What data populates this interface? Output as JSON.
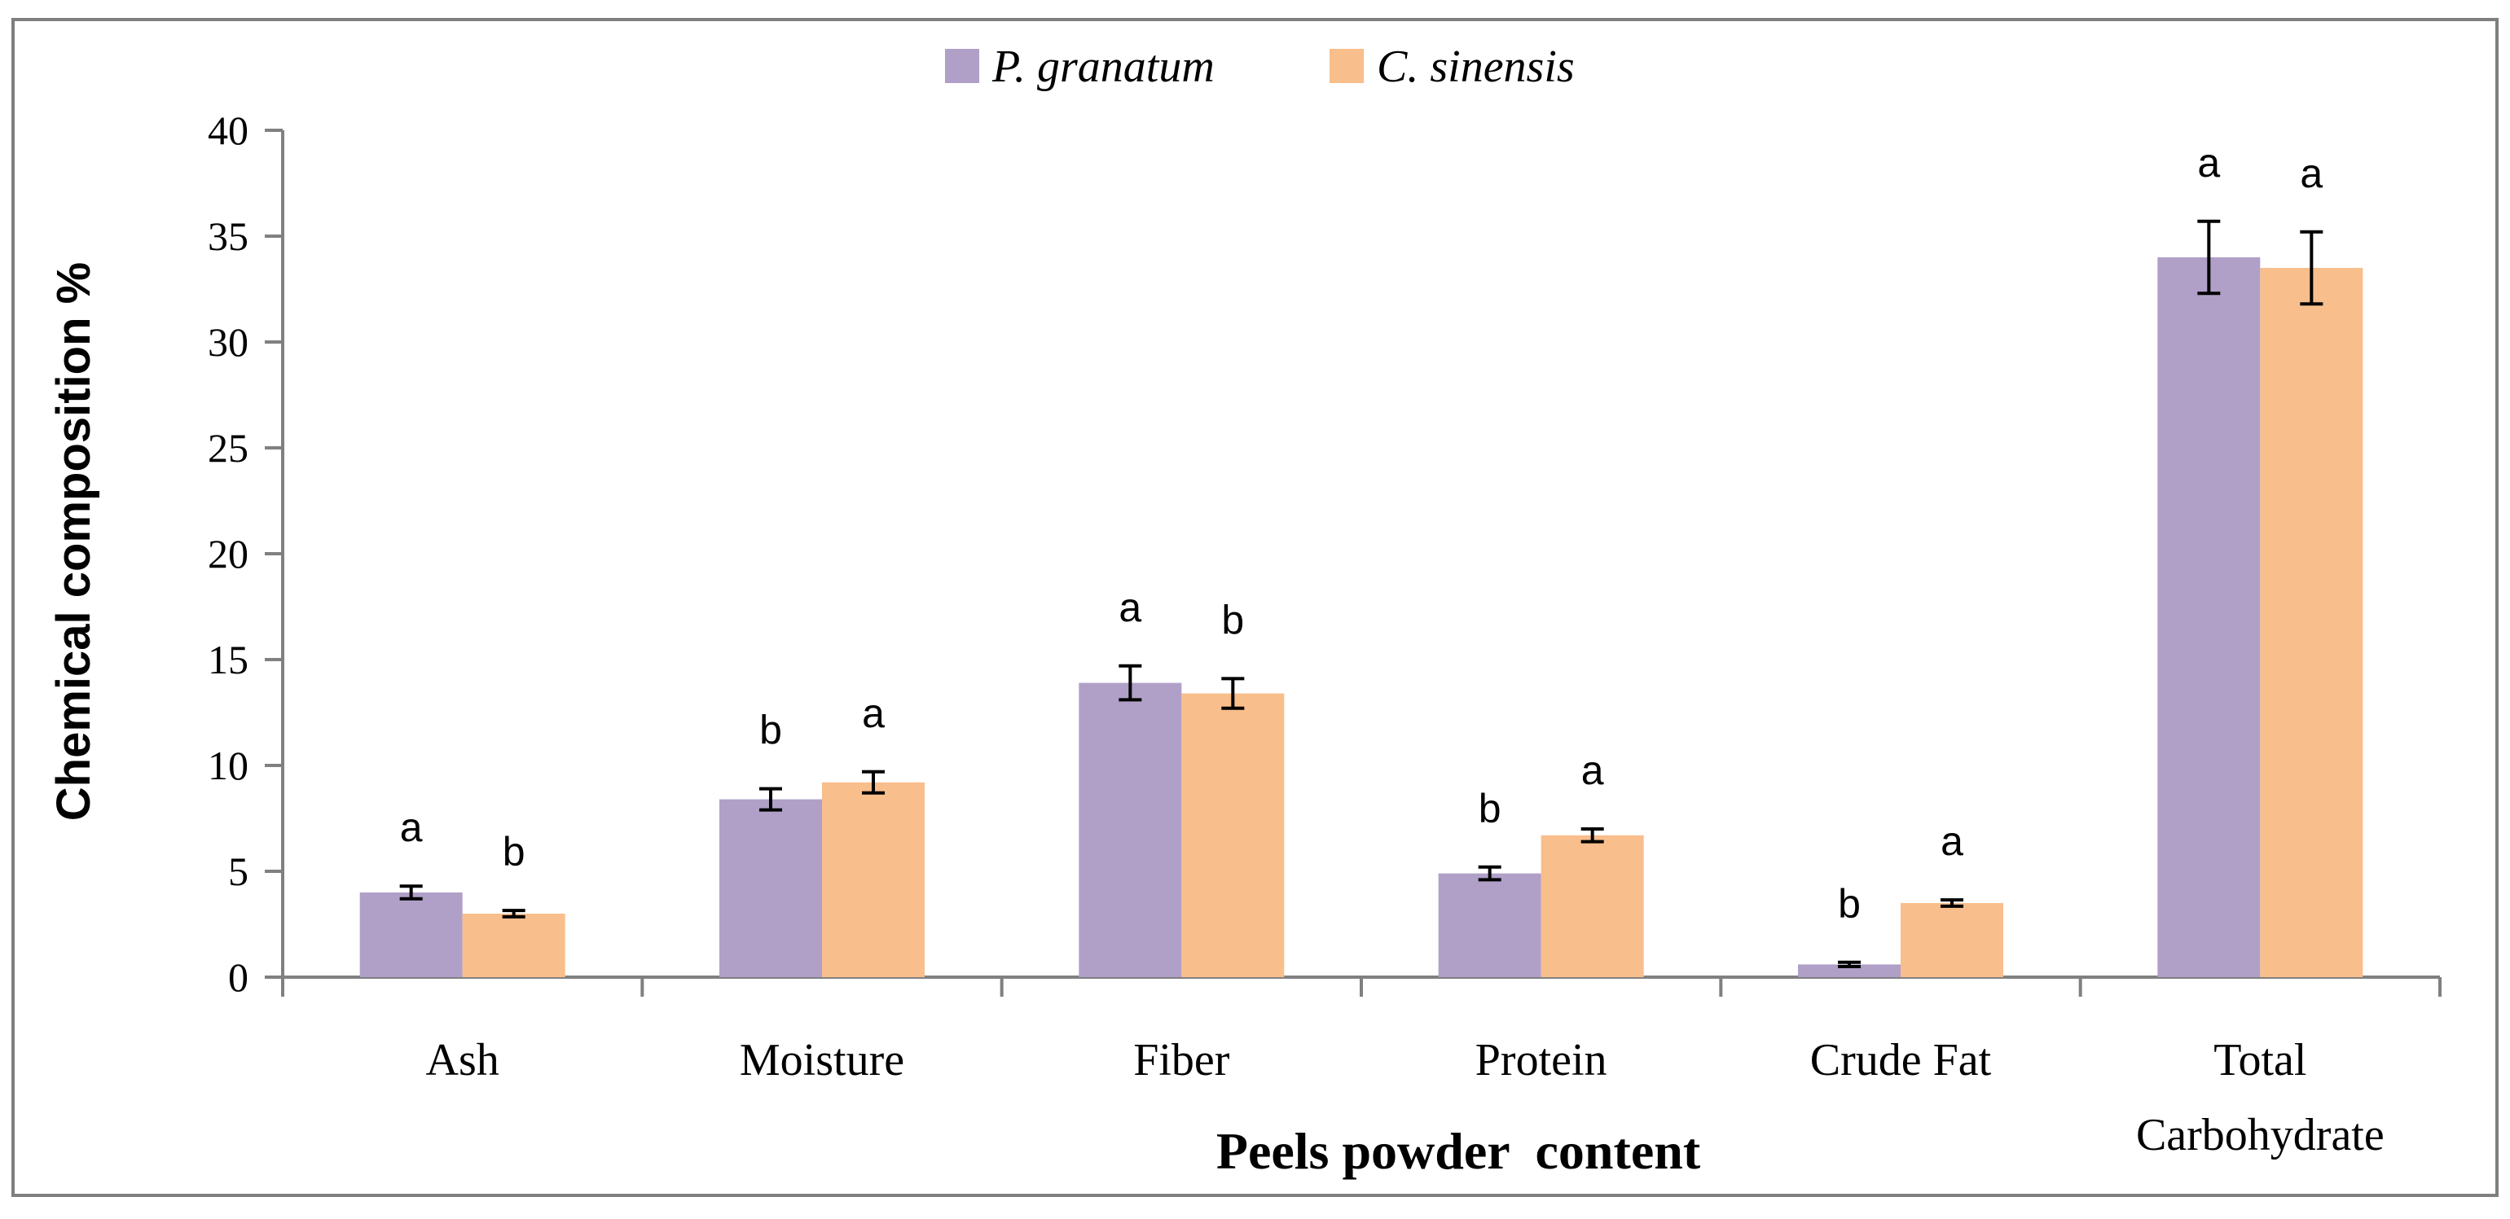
{
  "chart_data": {
    "type": "bar",
    "title": "",
    "xlabel": "Peels powder  content",
    "ylabel": "Chemical composition %",
    "ylim": [
      0,
      40
    ],
    "yticks": [
      "0",
      "5",
      "10",
      "15",
      "20",
      "25",
      "30",
      "35",
      "40"
    ],
    "categories": [
      "Ash",
      "Moisture",
      "Fiber",
      "Protein",
      "Crude Fat",
      "Total Carbohydrate"
    ],
    "category_lines": [
      [
        "Ash"
      ],
      [
        "Moisture"
      ],
      [
        "Fiber"
      ],
      [
        "Protein"
      ],
      [
        "Crude Fat"
      ],
      [
        "Total",
        "Carbohydrate"
      ]
    ],
    "legend_position": "top-center",
    "grid": false,
    "series": [
      {
        "name": "P. granatum",
        "color": "#b0a0c8",
        "values": [
          4.0,
          8.4,
          13.9,
          4.9,
          0.6,
          34.0
        ],
        "errors": [
          0.3,
          0.5,
          0.8,
          0.3,
          0.1,
          1.7
        ],
        "labels": [
          "a",
          "b",
          "a",
          "b",
          "b",
          "a"
        ]
      },
      {
        "name": "C. sinensis",
        "color": "#f8be8c",
        "values": [
          3.0,
          9.2,
          13.4,
          6.7,
          3.5,
          33.5
        ],
        "errors": [
          0.15,
          0.5,
          0.7,
          0.3,
          0.15,
          1.7
        ],
        "labels": [
          "b",
          "a",
          "b",
          "a",
          "a",
          "a"
        ]
      }
    ]
  }
}
